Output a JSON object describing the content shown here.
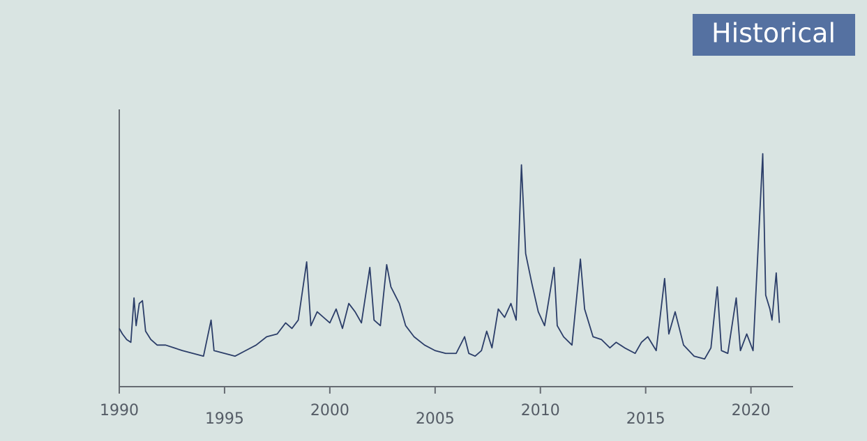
{
  "chart_data": {
    "type": "line",
    "annotation": "Historical",
    "x": [
      1990.0,
      1990.15,
      1990.35,
      1990.55,
      1990.7,
      1990.8,
      1990.95,
      1991.1,
      1991.25,
      1991.5,
      1991.8,
      1992.2,
      1992.6,
      1993.0,
      1993.5,
      1994.0,
      1994.36,
      1994.5,
      1995.0,
      1995.5,
      1996.0,
      1996.5,
      1997.0,
      1997.5,
      1997.9,
      1998.2,
      1998.5,
      1998.9,
      1999.1,
      1999.4,
      1999.7,
      2000.0,
      2000.3,
      2000.6,
      2000.9,
      2001.2,
      2001.5,
      2001.9,
      2002.1,
      2002.4,
      2002.7,
      2002.9,
      2003.1,
      2003.3,
      2003.6,
      2004.0,
      2004.5,
      2005.0,
      2005.5,
      2006.0,
      2006.4,
      2006.6,
      2006.9,
      2007.2,
      2007.45,
      2007.7,
      2008.0,
      2008.3,
      2008.6,
      2008.85,
      2009.1,
      2009.3,
      2009.6,
      2009.9,
      2010.2,
      2010.65,
      2010.8,
      2011.1,
      2011.5,
      2011.9,
      2012.1,
      2012.5,
      2012.9,
      2013.3,
      2013.6,
      2014.0,
      2014.5,
      2014.8,
      2015.1,
      2015.5,
      2015.9,
      2016.1,
      2016.4,
      2016.8,
      2017.3,
      2017.8,
      2018.1,
      2018.4,
      2018.6,
      2018.9,
      2019.3,
      2019.5,
      2019.8,
      2020.1,
      2020.56,
      2020.7,
      2020.9,
      2021.0,
      2021.2,
      2021.35
    ],
    "series": [
      {
        "color": "#2b3d68",
        "values": [
          21,
          19,
          17,
          16,
          32,
          22,
          30,
          31,
          20,
          17,
          15,
          15,
          14,
          13,
          12,
          11,
          24,
          13,
          12,
          11,
          13,
          15,
          18,
          19,
          23,
          21,
          24,
          45,
          22,
          27,
          25,
          23,
          28,
          21,
          30,
          27,
          23,
          43,
          24,
          22,
          44,
          36,
          33,
          30,
          22,
          18,
          15,
          13,
          12,
          12,
          18,
          12,
          11,
          13,
          20,
          14,
          28,
          25,
          30,
          24,
          80,
          48,
          37,
          27,
          22,
          43,
          22,
          18,
          15,
          46,
          28,
          18,
          17,
          14,
          16,
          14,
          12,
          16,
          18,
          13,
          39,
          19,
          27,
          15,
          11,
          10,
          14,
          36,
          13,
          12,
          32,
          13,
          19,
          13,
          84,
          33,
          28,
          24,
          41,
          23
        ]
      }
    ],
    "xlim": [
      1990,
      2022
    ],
    "xticks": [
      1990,
      1995,
      2000,
      2005,
      2010,
      2015,
      2020
    ],
    "ylim": [
      0,
      100
    ]
  }
}
